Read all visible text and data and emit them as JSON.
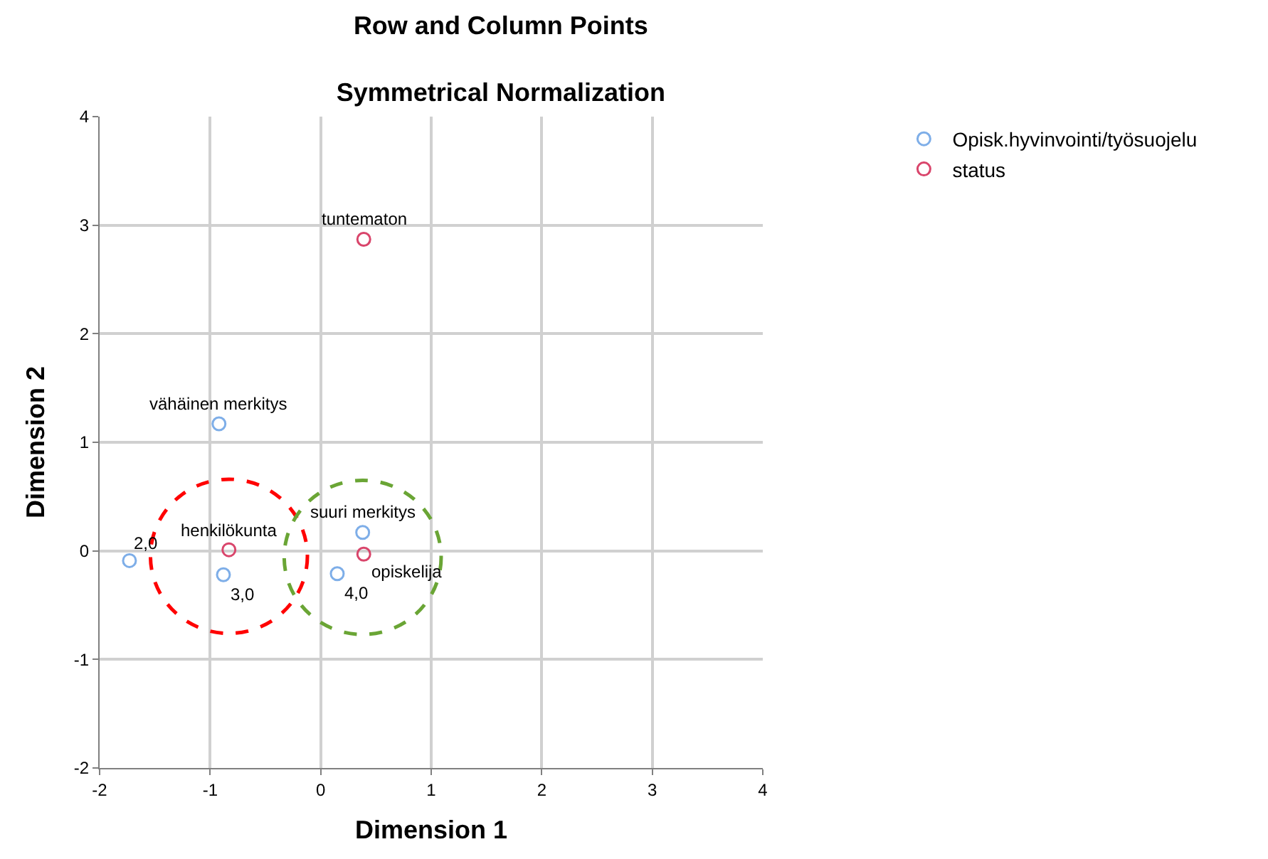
{
  "chart_data": {
    "type": "scatter",
    "title": "Row and Column Points",
    "subtitle": "Symmetrical Normalization",
    "xlabel": "Dimension 1",
    "ylabel": "Dimension 2",
    "annotations": [
      {
        "text": "vähäinen merkitys",
        "x": -0.92,
        "y": 1.17
      },
      {
        "text": "suuri merkitys",
        "x": 0.38,
        "y": 0.17
      },
      {
        "text": "2,0",
        "x": -1.73,
        "y": -0.09
      },
      {
        "text": "3,0",
        "x": -0.88,
        "y": -0.22
      },
      {
        "text": "4,0",
        "x": 0.15,
        "y": -0.21
      },
      {
        "text": "tuntematon",
        "x": 0.39,
        "y": 2.87
      },
      {
        "text": "henkilökunta",
        "x": -0.83,
        "y": 0.01
      },
      {
        "text": "opiskelija",
        "x": 0.39,
        "y": -0.03
      }
    ],
    "xlim": [
      -2,
      4
    ],
    "ylim": [
      -2,
      4
    ],
    "xticks": [
      -2,
      -1,
      0,
      1,
      2,
      3,
      4
    ],
    "yticks": [
      -2,
      -1,
      0,
      1,
      2,
      3,
      4
    ],
    "grid": true,
    "legend": "top right",
    "marker": "circle",
    "series": [
      {
        "name": "Opisk.hyvinvointi/työsuojelu",
        "color": "#7eaee8",
        "x": [
          -0.92,
          0.38,
          -1.73,
          -0.88,
          0.15
        ],
        "values": [
          1.17,
          0.17,
          -0.09,
          -0.22,
          -0.21
        ]
      },
      {
        "name": "status",
        "color": "#d9456b",
        "x": [
          0.39,
          -0.83,
          0.39
        ],
        "values": [
          2.87,
          0.01,
          -0.03
        ]
      }
    ]
  }
}
